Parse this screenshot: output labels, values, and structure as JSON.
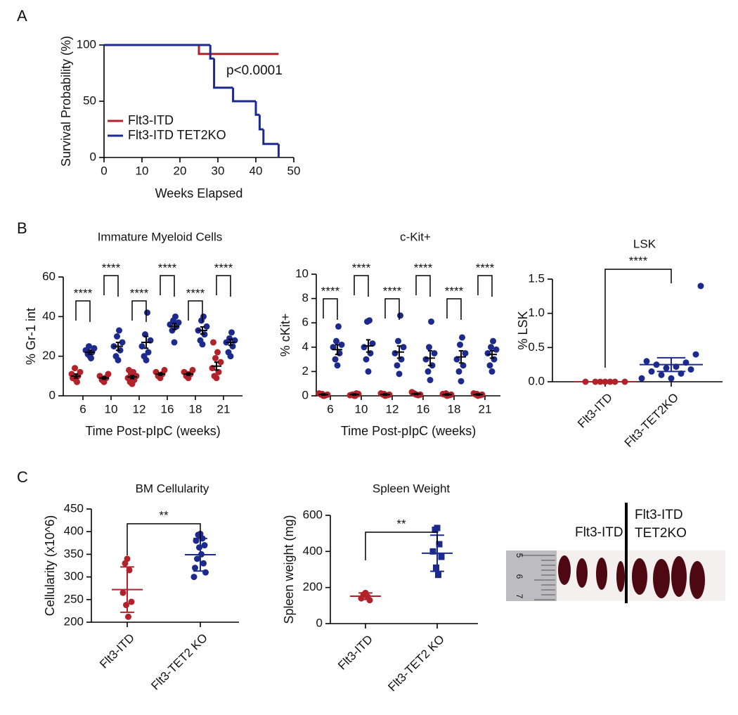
{
  "panel_labels": [
    "A",
    "B",
    "C"
  ],
  "chart_data": [
    {
      "type": "survival",
      "y_label": "Survival Probability (%)",
      "x_label": "Weeks Elapsed",
      "annotation": "p<0.0001",
      "xlim": [
        0,
        50
      ],
      "xticks": [
        0,
        10,
        20,
        30,
        40,
        50
      ],
      "ylim": [
        0,
        100
      ],
      "yticks": [
        0,
        50,
        100
      ],
      "legend": "lower-left",
      "series": [
        {
          "name": "Flt3-ITD",
          "color": "#b2222a",
          "x": [
            0,
            25,
            46
          ],
          "values": [
            100,
            92,
            92
          ]
        },
        {
          "name": "Flt3-ITD TET2KO",
          "color": "#1c2a8e",
          "x": [
            0,
            28,
            29,
            34,
            40,
            41,
            42,
            46
          ],
          "values": [
            100,
            88,
            62,
            50,
            38,
            25,
            12,
            0
          ]
        }
      ]
    },
    {
      "type": "grouped_dot",
      "title": "Immature Myeloid Cells",
      "y_label": "% Gr-1 int",
      "x_label": "Time Post-pIpC (weeks)",
      "categories": [
        "6",
        "10",
        "12",
        "16",
        "18",
        "21"
      ],
      "ylim": [
        0,
        60
      ],
      "yticks": [
        0,
        20,
        40,
        60
      ],
      "significance": [
        "****",
        "****",
        "****",
        "****",
        "****",
        "****"
      ],
      "series": [
        {
          "color": "#b2222a",
          "marker": "circle",
          "values": [
            [
              8,
              9,
              10,
              11,
              12,
              14,
              7,
              9
            ],
            [
              7,
              8,
              9,
              10,
              11,
              8,
              9
            ],
            [
              6,
              7,
              8,
              9,
              10,
              11,
              12,
              13
            ],
            [
              9,
              10,
              11,
              12,
              13,
              10
            ],
            [
              9,
              10,
              11,
              12,
              13,
              11
            ],
            [
              9,
              10,
              12,
              14,
              17,
              19,
              22,
              27
            ]
          ],
          "means": [
            10,
            9,
            9.5,
            11,
            11,
            15
          ],
          "errors": [
            1,
            0.6,
            0.8,
            0.6,
            0.6,
            2
          ]
        },
        {
          "color": "#1c2a8e",
          "marker": "circle",
          "values": [
            [
              20,
              21,
              22,
              23,
              24,
              25,
              19
            ],
            [
              18,
              20,
              23,
              25,
              27,
              30,
              33
            ],
            [
              18,
              20,
              22,
              25,
              28,
              31,
              42
            ],
            [
              27,
              33,
              35,
              36,
              37,
              38,
              40
            ],
            [
              26,
              28,
              31,
              33,
              35,
              38,
              40
            ],
            [
              20,
              22,
              25,
              27,
              28,
              29,
              32
            ]
          ],
          "means": [
            22,
            25,
            27,
            35,
            33,
            27
          ],
          "errors": [
            1,
            2,
            3,
            1.5,
            1.8,
            1.5
          ]
        }
      ]
    },
    {
      "type": "grouped_dot",
      "title": "c-Kit+",
      "y_label": "% cKit+",
      "x_label": "Time Post-pIpC (weeks)",
      "categories": [
        "6",
        "10",
        "12",
        "16",
        "18",
        "21"
      ],
      "ylim": [
        0,
        10
      ],
      "yticks": [
        0,
        2,
        4,
        6,
        8,
        10
      ],
      "significance": [
        "****",
        "****",
        "****",
        "****",
        "****",
        "****"
      ],
      "series": [
        {
          "color": "#b2222a",
          "marker": "circle",
          "values": [
            [
              0,
              0.1,
              0.05,
              0.2,
              0.1,
              0.15,
              0
            ],
            [
              0,
              0.1,
              0.2,
              0.05,
              0.15,
              0.1,
              0
            ],
            [
              0,
              0.1,
              0.05,
              0.2,
              0.1,
              0.15
            ],
            [
              0.1,
              0.2,
              0.05,
              0.3,
              0.1,
              0.15
            ],
            [
              0,
              0.1,
              0.05,
              0.15,
              0.1,
              0.2
            ],
            [
              0,
              0.1,
              0.05,
              0.2,
              0.1,
              0.15
            ]
          ],
          "means": [
            0.1,
            0.1,
            0.1,
            0.15,
            0.1,
            0.1
          ],
          "errors": [
            0.05,
            0.05,
            0.05,
            0.05,
            0.05,
            0.05
          ]
        },
        {
          "color": "#1c2a8e",
          "marker": "circle",
          "values": [
            [
              2.5,
              3,
              3.5,
              4,
              4.2,
              4.5,
              5.7
            ],
            [
              2,
              3,
              3.5,
              4,
              4.3,
              6.1,
              6.2
            ],
            [
              1.8,
              2.5,
              3,
              3.5,
              4,
              4.5,
              6.6
            ],
            [
              1.3,
              2,
              2.5,
              3,
              3.5,
              4,
              6.1
            ],
            [
              1.2,
              2,
              2.5,
              3,
              3.5,
              4.2,
              4.8
            ],
            [
              2,
              2.5,
              3,
              3.5,
              3.8,
              4,
              4.5
            ]
          ],
          "means": [
            3.8,
            4.1,
            3.6,
            3.1,
            3.2,
            3.4
          ],
          "errors": [
            0.4,
            0.5,
            0.5,
            0.6,
            0.5,
            0.3
          ]
        }
      ]
    },
    {
      "type": "group_dot",
      "title": "LSK",
      "y_label": "% LSK",
      "categories": [
        "Flt3-ITD",
        "Flt3-TET2KO"
      ],
      "colors": [
        "#b2222a",
        "#1c2a8e"
      ],
      "markers": [
        "circle",
        "circle"
      ],
      "ylim": [
        0,
        1.5
      ],
      "yticks": [
        {
          "value": 0,
          "label": "0.0"
        },
        0.5,
        {
          "value": 1,
          "label": "1.0"
        },
        1.5
      ],
      "significance": "****",
      "values": [
        [
          0,
          0,
          0,
          0,
          0,
          0,
          0
        ],
        [
          0.05,
          0.1,
          0.12,
          0.15,
          0.18,
          0.2,
          0.22,
          0.25,
          0.28,
          0.3,
          0.4,
          0.05,
          1.4
        ]
      ],
      "means": [
        0,
        0.25
      ],
      "errors": [
        0,
        0.1
      ]
    },
    {
      "type": "group_dot",
      "title": "BM Cellularity",
      "y_label": "Cellularity (x10^6)",
      "categories": [
        "Flt3-ITD",
        "Flt3-TET2 KO"
      ],
      "colors": [
        "#b2222a",
        "#1c2a8e"
      ],
      "markers": [
        "circle",
        "circle"
      ],
      "ylim": [
        200,
        450
      ],
      "yticks": [
        200,
        250,
        300,
        350,
        400,
        450
      ],
      "significance": "**",
      "values": [
        [
          340,
          330,
          315,
          265,
          245,
          238,
          212
        ],
        [
          395,
          393,
          385,
          380,
          370,
          365,
          350,
          340,
          330,
          320,
          310,
          300
        ]
      ],
      "means": [
        272,
        349
      ],
      "errors": [
        50,
        36
      ]
    },
    {
      "type": "group_dot",
      "title": "Spleen Weight",
      "y_label": "Spleen weight (mg)",
      "categories": [
        "Flt3-ITD",
        "Flt3-TET2 KO"
      ],
      "colors": [
        "#b2222a",
        "#1c2a8e"
      ],
      "markers": [
        "circle",
        "square"
      ],
      "ylim": [
        0,
        600
      ],
      "yticks": [
        0,
        200,
        400,
        600
      ],
      "significance": "**",
      "values": [
        [
          170,
          160,
          150,
          140,
          130
        ],
        [
          530,
          520,
          440,
          400,
          370,
          310,
          270
        ]
      ],
      "means": [
        152,
        390
      ],
      "errors": [
        18,
        100
      ]
    }
  ],
  "photo": {
    "left_label": "Flt3-ITD",
    "right_label": [
      "Flt3-ITD",
      "TET2KO"
    ],
    "ruler_labels": [
      "5",
      "6",
      "7"
    ]
  }
}
